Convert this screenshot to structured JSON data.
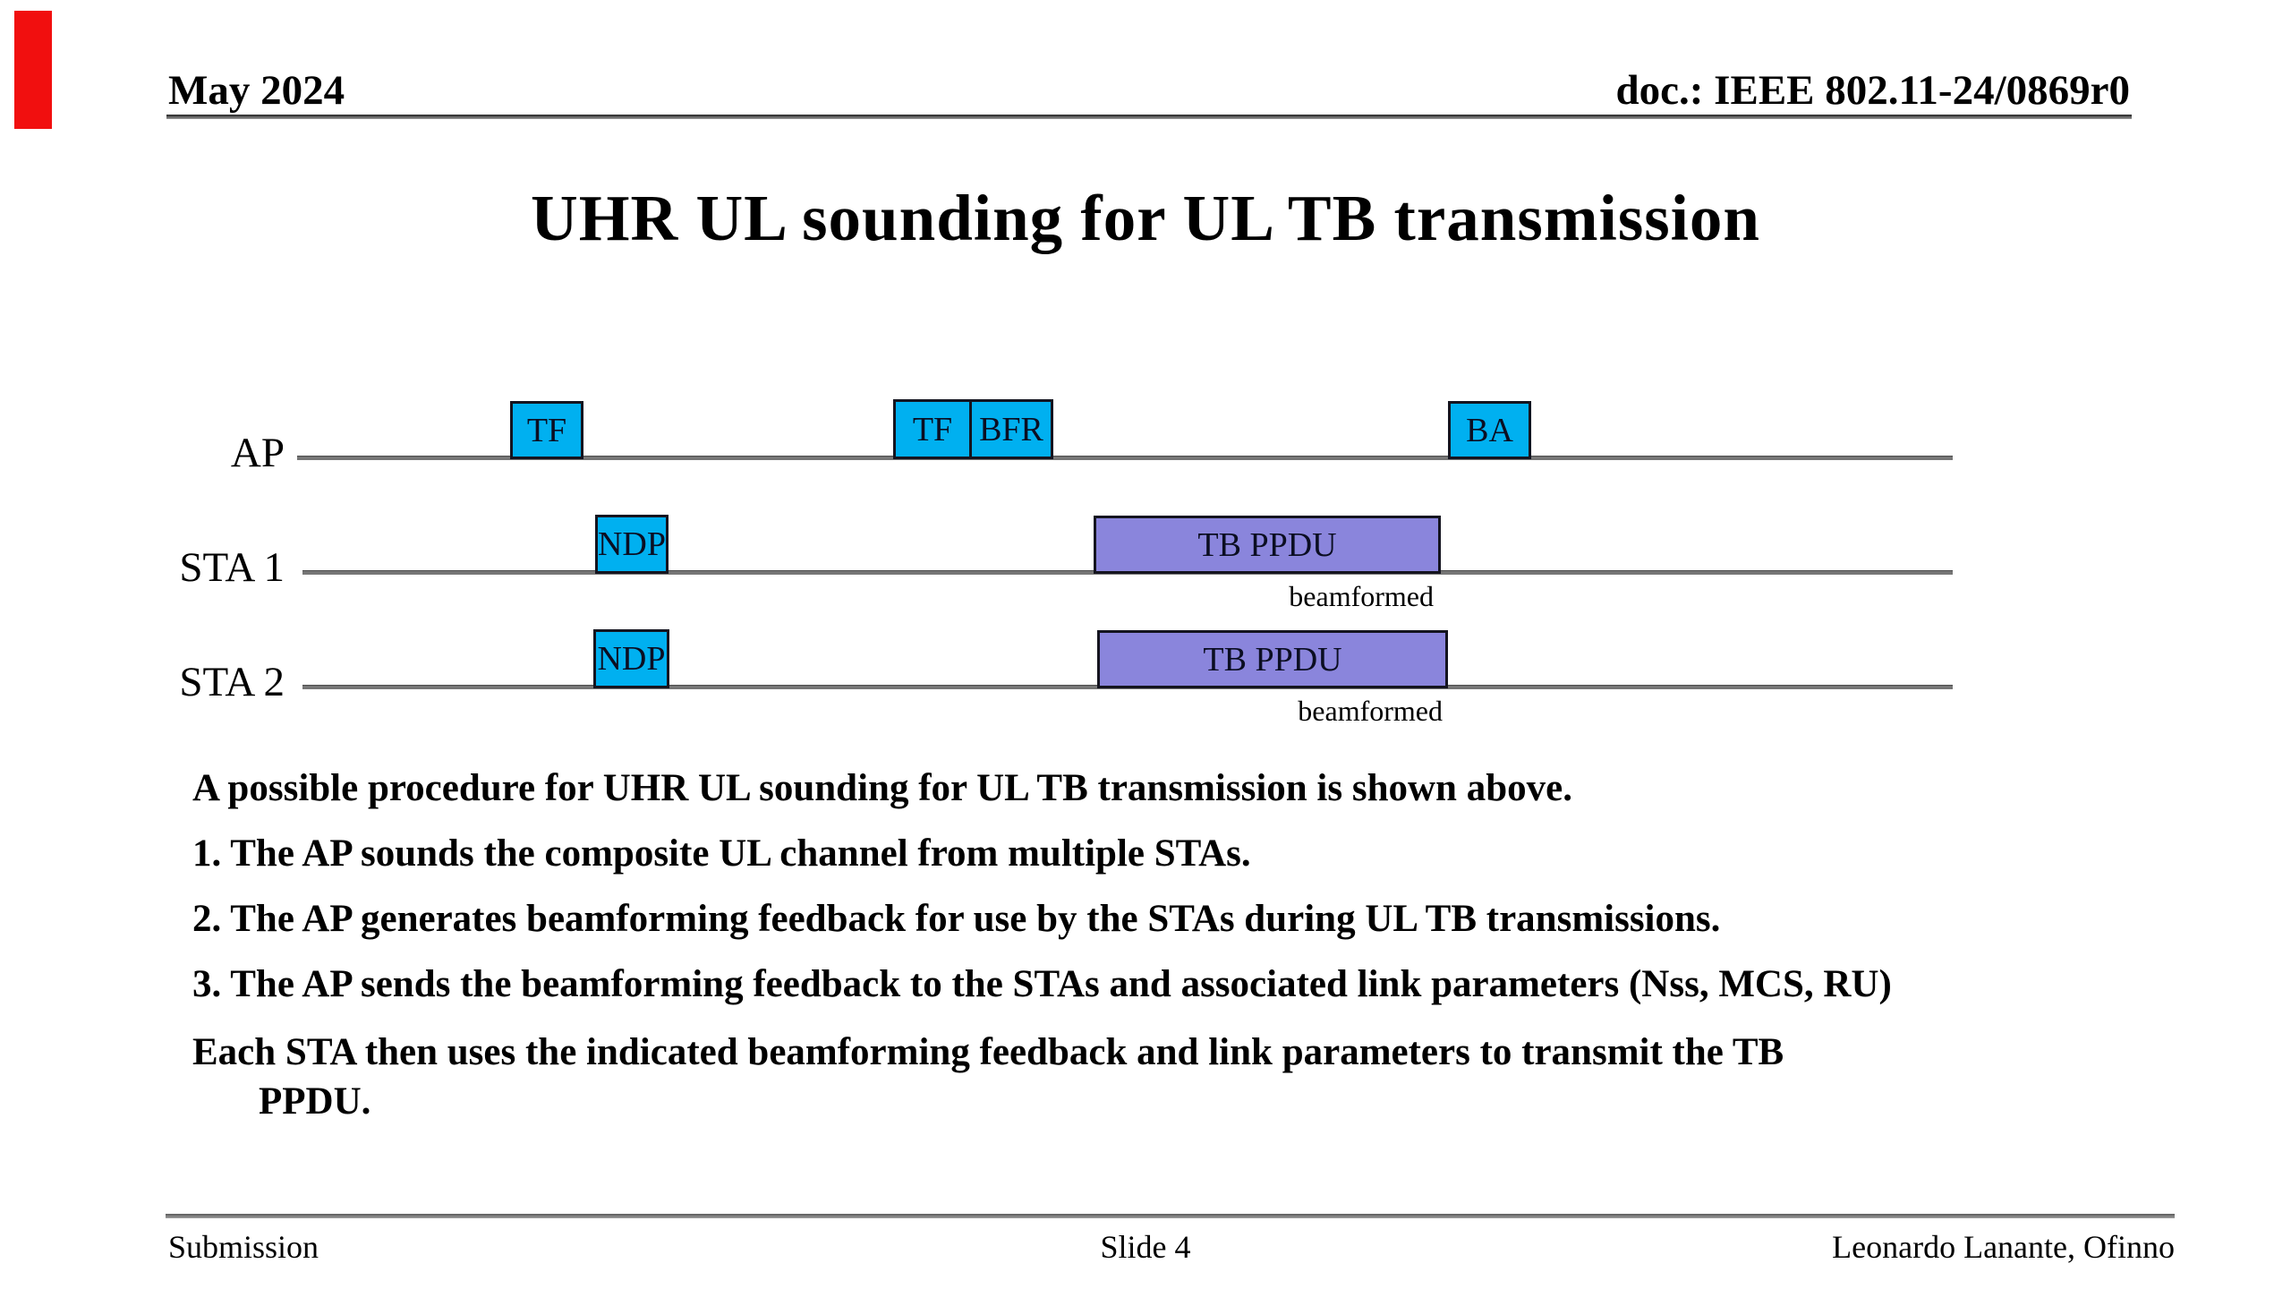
{
  "header": {
    "date": "May 2024",
    "doc_id": "doc.: IEEE 802.11-24/0869r0"
  },
  "title": "UHR UL sounding for UL TB transmission",
  "diagram": {
    "rows": [
      {
        "label": "AP"
      },
      {
        "label": "STA 1"
      },
      {
        "label": "STA 2"
      }
    ],
    "boxes": {
      "tf1": "TF",
      "tf2": "TF",
      "bfr": "BFR",
      "ba": "BA",
      "ndp1": "NDP",
      "ndp2": "NDP",
      "tb_ppdu1": "TB PPDU",
      "tb_ppdu2": "TB PPDU"
    },
    "annotations": {
      "beamformed1": "beamformed",
      "beamformed2": "beamformed"
    },
    "colors": {
      "frame_fill": "#00b0f0",
      "ppdu_fill": "#8a85dc",
      "timeline": "#767676",
      "box_border": "#14141f"
    }
  },
  "body": {
    "lines": [
      "A possible procedure for UHR UL sounding for UL TB transmission is shown above.",
      "1. The AP sounds the composite UL channel from multiple STAs.",
      "2. The AP generates beamforming feedback for use by the STAs during UL TB transmissions.",
      "3. The AP sends the beamforming feedback to the STAs and associated link parameters (Nss, MCS, RU)",
      "Each STA then uses the indicated beamforming feedback and link parameters to transmit the TB",
      "PPDU."
    ]
  },
  "footer": {
    "left": "Submission",
    "center": "Slide 4",
    "right": "Leonardo Lanante, Ofinno"
  }
}
